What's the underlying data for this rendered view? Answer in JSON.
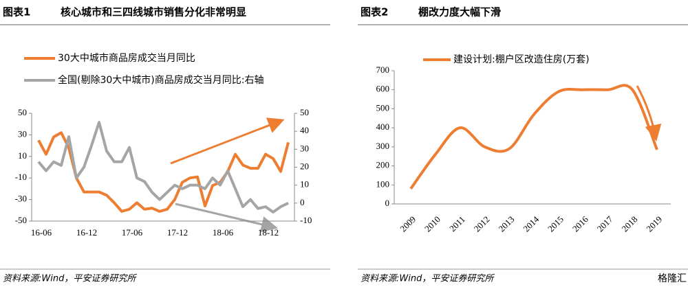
{
  "chart_data": [
    {
      "type": "line",
      "label": "图表1",
      "title": "核心城市和三四线城市销售分化非常明显",
      "categories": [
        "16-06",
        null,
        null,
        null,
        null,
        null,
        "16-12",
        null,
        null,
        null,
        null,
        null,
        "17-06",
        null,
        null,
        null,
        null,
        null,
        "17-12",
        null,
        null,
        null,
        null,
        null,
        "18-06",
        null,
        null,
        null,
        null,
        null,
        "18-12",
        null,
        null,
        null
      ],
      "series": [
        {
          "name": "30大中城市商品房成交当月同比",
          "color": "#ed7d31",
          "values": [
            25,
            12,
            28,
            32,
            18,
            -10,
            -23,
            -23,
            -23,
            -26,
            -33,
            -41,
            -39,
            -33,
            -39,
            -38,
            -41,
            -39,
            -30,
            -14,
            -10,
            -9,
            -36,
            -17,
            -14,
            -4,
            12,
            2,
            -1,
            -1,
            12,
            8,
            -4,
            23
          ]
        },
        {
          "name": "全国(剔除30大中城市)商品房成交当月同比:右轴",
          "color": "#a5a5a5",
          "axis": "y2",
          "values": [
            23,
            18,
            23,
            21,
            37,
            14,
            20,
            32,
            45,
            29,
            23,
            23,
            31,
            14,
            12,
            6,
            2,
            6,
            10,
            8,
            10,
            10,
            8,
            14,
            10,
            18,
            8,
            -2,
            2,
            -3,
            -2,
            -5,
            -2,
            0
          ]
        }
      ],
      "ylim": [
        -50,
        50
      ],
      "yticks": [
        -50,
        -30,
        -10,
        10,
        30,
        50
      ],
      "y2lim": [
        -10,
        50
      ],
      "y2ticks": [
        -10,
        0,
        10,
        20,
        30,
        40,
        50
      ],
      "legend": "top-left",
      "source": "资料来源:Wind，平安证券研究所"
    },
    {
      "type": "line",
      "label": "图表2",
      "title": "棚改力度大幅下滑",
      "smooth": true,
      "categories": [
        "2009",
        "2010",
        "2011",
        "2012",
        "2013",
        "2014",
        "2015",
        "2016",
        "2017",
        "2018",
        "2019"
      ],
      "series": [
        {
          "name": "建设计划:棚户区改造住房(万套)",
          "color": "#ed7d31",
          "values": [
            80,
            260,
            400,
            300,
            290,
            470,
            590,
            600,
            600,
            600,
            285
          ]
        }
      ],
      "ylim": [
        0,
        700
      ],
      "yticks": [
        0,
        100,
        200,
        300,
        400,
        500,
        600,
        700
      ],
      "legend": "top",
      "source": "资料来源:Wind，平安证券研究所"
    }
  ],
  "watermark": "格隆汇"
}
